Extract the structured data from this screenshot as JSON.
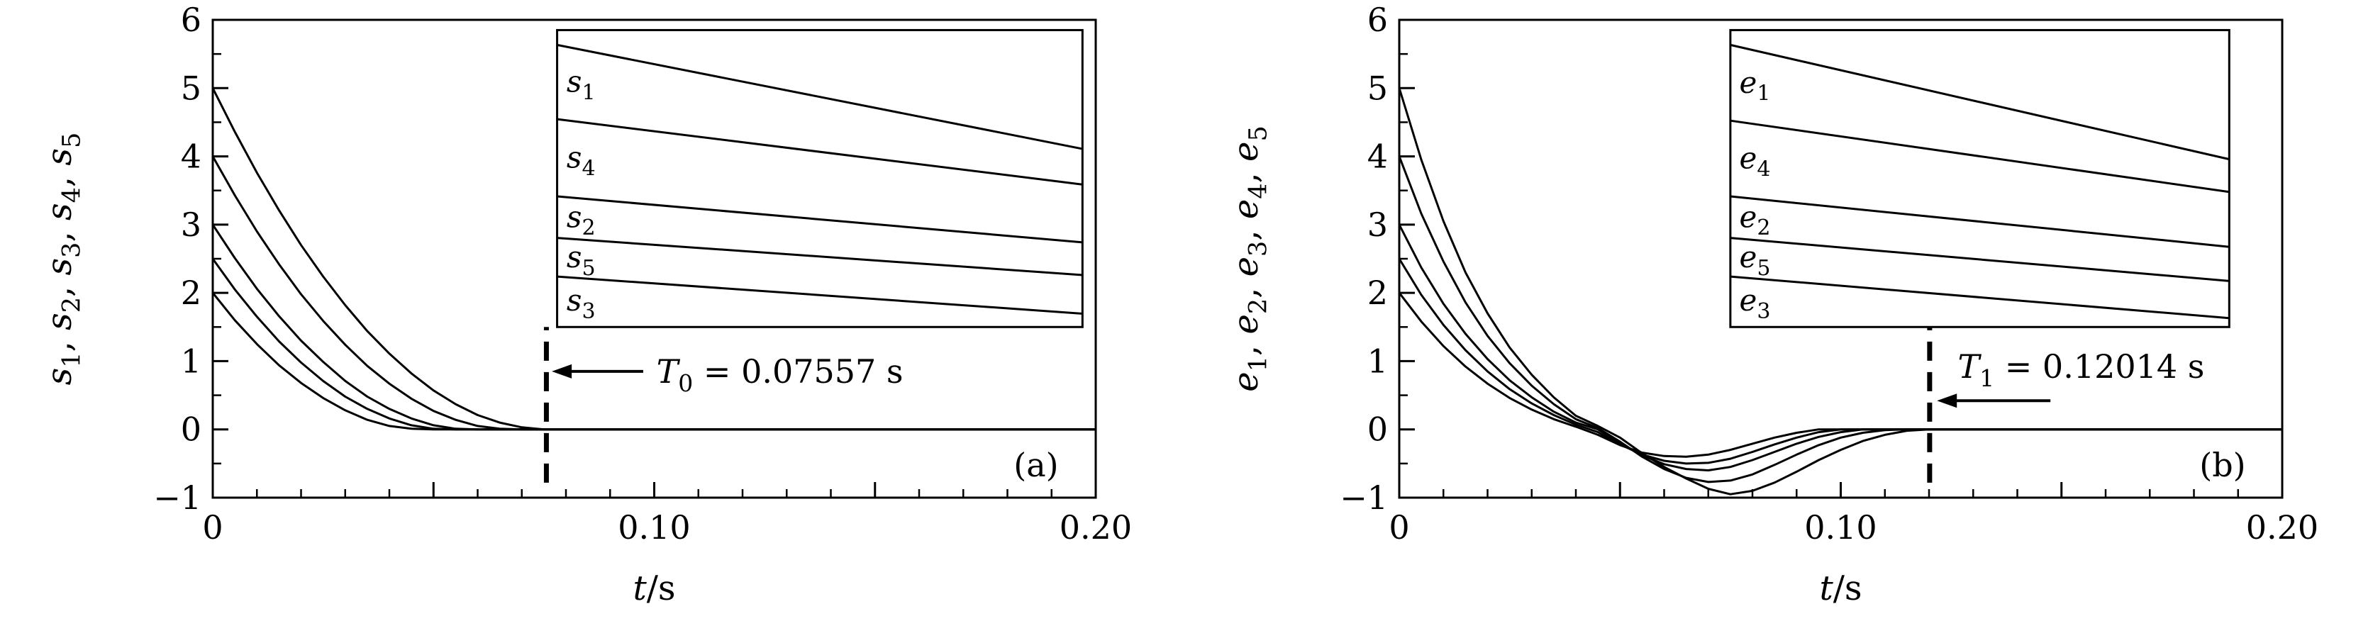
{
  "colors": {
    "ink": "#000000",
    "bg": "#ffffff"
  },
  "chart_data": [
    {
      "id": "a",
      "type": "line",
      "panel_label": {
        "text": "(a)",
        "x": 0.1865,
        "y": -0.52
      },
      "xlabel_parts": [
        {
          "t": "t",
          "i": 1
        },
        {
          "t": "/s"
        }
      ],
      "ylabel_parts": [
        {
          "t": "s",
          "i": 1
        },
        {
          "t": "1",
          "sub": 1
        },
        {
          "t": ", "
        },
        {
          "t": "s",
          "i": 1
        },
        {
          "t": "2",
          "sub": 1
        },
        {
          "t": ", "
        },
        {
          "t": "s",
          "i": 1
        },
        {
          "t": "3",
          "sub": 1
        },
        {
          "t": ", "
        },
        {
          "t": "s",
          "i": 1
        },
        {
          "t": "4",
          "sub": 1
        },
        {
          "t": ", "
        },
        {
          "t": "s",
          "i": 1
        },
        {
          "t": "5",
          "sub": 1
        }
      ],
      "xlim": [
        0,
        0.2
      ],
      "ylim": [
        -1,
        6
      ],
      "xticks": [
        {
          "v": 0,
          "label": "0"
        },
        {
          "v": 0.05,
          "label": ""
        },
        {
          "v": 0.1,
          "label": "0.10"
        },
        {
          "v": 0.15,
          "label": ""
        },
        {
          "v": 0.2,
          "label": "0.20"
        }
      ],
      "x_minor_step": 0.01,
      "yticks": [
        {
          "v": -1,
          "label": "−1"
        },
        {
          "v": 0,
          "label": "0"
        },
        {
          "v": 1,
          "label": "1"
        },
        {
          "v": 2,
          "label": "2"
        },
        {
          "v": 3,
          "label": "3"
        },
        {
          "v": 4,
          "label": "4"
        },
        {
          "v": 5,
          "label": "5"
        },
        {
          "v": 6,
          "label": "6"
        }
      ],
      "y_minor_step": 0.5,
      "x": [
        0,
        0.005,
        0.01,
        0.015,
        0.02,
        0.025,
        0.03,
        0.035,
        0.04,
        0.045,
        0.05,
        0.055,
        0.06,
        0.065,
        0.07,
        0.075,
        0.08,
        0.085,
        0.09,
        0.095,
        0.1,
        0.105,
        0.11,
        0.115,
        0.12,
        0.125,
        0.13,
        0.14,
        0.16,
        0.18,
        0.2
      ],
      "series": [
        {
          "name": "s1",
          "label": [
            {
              "t": "s",
              "i": 1
            },
            {
              "t": "1",
              "sub": 1
            }
          ],
          "values": [
            5,
            4.36,
            3.76,
            3.21,
            2.7,
            2.24,
            1.82,
            1.44,
            1.11,
            0.82,
            0.57,
            0.37,
            0.21,
            0.1,
            0.03,
            0,
            0,
            0,
            0,
            0,
            0,
            0,
            0,
            0,
            0,
            0,
            0,
            0,
            0,
            0,
            0
          ]
        },
        {
          "name": "s4",
          "label": [
            {
              "t": "s",
              "i": 1
            },
            {
              "t": "4",
              "sub": 1
            }
          ],
          "values": [
            4,
            3.43,
            2.9,
            2.42,
            1.98,
            1.59,
            1.24,
            0.93,
            0.67,
            0.45,
            0.27,
            0.14,
            0.05,
            0.01,
            0,
            0,
            0,
            0,
            0,
            0,
            0,
            0,
            0,
            0,
            0,
            0,
            0,
            0,
            0,
            0,
            0
          ]
        },
        {
          "name": "s2",
          "label": [
            {
              "t": "s",
              "i": 1
            },
            {
              "t": "2",
              "sub": 1
            }
          ],
          "values": [
            3,
            2.51,
            2.06,
            1.66,
            1.3,
            0.99,
            0.71,
            0.48,
            0.3,
            0.16,
            0.06,
            0.01,
            0,
            0,
            0,
            0,
            0,
            0,
            0,
            0,
            0,
            0,
            0,
            0,
            0,
            0,
            0,
            0,
            0,
            0,
            0
          ]
        },
        {
          "name": "s5",
          "label": [
            {
              "t": "s",
              "i": 1
            },
            {
              "t": "5",
              "sub": 1
            }
          ],
          "values": [
            2.5,
            2.05,
            1.65,
            1.29,
            0.98,
            0.71,
            0.48,
            0.3,
            0.16,
            0.06,
            0.01,
            0,
            0,
            0,
            0,
            0,
            0,
            0,
            0,
            0,
            0,
            0,
            0,
            0,
            0,
            0,
            0,
            0,
            0,
            0,
            0
          ]
        },
        {
          "name": "s3",
          "label": [
            {
              "t": "s",
              "i": 1
            },
            {
              "t": "3",
              "sub": 1
            }
          ],
          "values": [
            2,
            1.6,
            1.25,
            0.94,
            0.68,
            0.46,
            0.28,
            0.14,
            0.05,
            0.01,
            0,
            0,
            0,
            0,
            0,
            0,
            0,
            0,
            0,
            0,
            0,
            0,
            0,
            0,
            0,
            0,
            0,
            0,
            0,
            0,
            0
          ]
        }
      ],
      "threshold": {
        "x": 0.07557,
        "line_y0": -0.78,
        "line_y1": 1.5,
        "arrow": {
          "y": 0.85,
          "tip_x": 0.0768,
          "tail_x": 0.0975
        },
        "label": [
          {
            "t": "T",
            "i": 1
          },
          {
            "t": "0",
            "sub": 1
          },
          {
            "t": " = 0.07557 s"
          }
        ],
        "label_x": 0.1005,
        "label_y": 0.85
      },
      "inset": {
        "box": {
          "x0": 0.078,
          "x1": 0.197,
          "y0": 1.5,
          "y1": 5.85
        },
        "lines": [
          {
            "name": "s1",
            "label": [
              {
                "t": "s",
                "i": 1
              },
              {
                "t": "1",
                "sub": 1
              }
            ],
            "v0": 0.95,
            "v1": 0.6
          },
          {
            "name": "s4",
            "label": [
              {
                "t": "s",
                "i": 1
              },
              {
                "t": "4",
                "sub": 1
              }
            ],
            "v0": 0.7,
            "v1": 0.48
          },
          {
            "name": "s2",
            "label": [
              {
                "t": "s",
                "i": 1
              },
              {
                "t": "2",
                "sub": 1
              }
            ],
            "v0": 0.44,
            "v1": 0.285
          },
          {
            "name": "s5",
            "label": [
              {
                "t": "s",
                "i": 1
              },
              {
                "t": "5",
                "sub": 1
              }
            ],
            "v0": 0.3,
            "v1": 0.175
          },
          {
            "name": "s3",
            "label": [
              {
                "t": "s",
                "i": 1
              },
              {
                "t": "3",
                "sub": 1
              }
            ],
            "v0": 0.17,
            "v1": 0.045
          }
        ]
      }
    },
    {
      "id": "b",
      "type": "line",
      "panel_label": {
        "text": "(b)",
        "x": 0.1865,
        "y": -0.52
      },
      "xlabel_parts": [
        {
          "t": "t",
          "i": 1
        },
        {
          "t": "/s"
        }
      ],
      "ylabel_parts": [
        {
          "t": "e",
          "i": 1
        },
        {
          "t": "1",
          "sub": 1
        },
        {
          "t": ", "
        },
        {
          "t": "e",
          "i": 1
        },
        {
          "t": "2",
          "sub": 1
        },
        {
          "t": ", "
        },
        {
          "t": "e",
          "i": 1
        },
        {
          "t": "3",
          "sub": 1
        },
        {
          "t": ", "
        },
        {
          "t": "e",
          "i": 1
        },
        {
          "t": "4",
          "sub": 1
        },
        {
          "t": ", "
        },
        {
          "t": "e",
          "i": 1
        },
        {
          "t": "5",
          "sub": 1
        }
      ],
      "xlim": [
        0,
        0.2
      ],
      "ylim": [
        -1,
        6
      ],
      "xticks": [
        {
          "v": 0,
          "label": "0"
        },
        {
          "v": 0.05,
          "label": ""
        },
        {
          "v": 0.1,
          "label": "0.10"
        },
        {
          "v": 0.15,
          "label": ""
        },
        {
          "v": 0.2,
          "label": "0.20"
        }
      ],
      "x_minor_step": 0.01,
      "yticks": [
        {
          "v": -1,
          "label": "−1"
        },
        {
          "v": 0,
          "label": "0"
        },
        {
          "v": 1,
          "label": "1"
        },
        {
          "v": 2,
          "label": "2"
        },
        {
          "v": 3,
          "label": "3"
        },
        {
          "v": 4,
          "label": "4"
        },
        {
          "v": 5,
          "label": "5"
        },
        {
          "v": 6,
          "label": "6"
        }
      ],
      "y_minor_step": 0.5,
      "x": [
        0,
        0.005,
        0.01,
        0.015,
        0.02,
        0.025,
        0.03,
        0.035,
        0.04,
        0.045,
        0.05,
        0.055,
        0.06,
        0.065,
        0.07,
        0.075,
        0.08,
        0.085,
        0.09,
        0.095,
        0.1,
        0.105,
        0.11,
        0.115,
        0.12,
        0.125,
        0.13,
        0.14,
        0.16,
        0.18,
        0.2
      ],
      "series": [
        {
          "name": "e1",
          "label": [
            {
              "t": "e",
              "i": 1
            },
            {
              "t": "1",
              "sub": 1
            }
          ],
          "values": [
            5,
            3.95,
            3.05,
            2.3,
            1.7,
            1.2,
            0.8,
            0.47,
            0.2,
            0.05,
            -0.12,
            -0.35,
            -0.55,
            -0.72,
            -0.87,
            -0.95,
            -0.9,
            -0.78,
            -0.62,
            -0.45,
            -0.3,
            -0.17,
            -0.08,
            -0.02,
            0,
            0,
            0,
            0,
            0,
            0,
            0
          ]
        },
        {
          "name": "e4",
          "label": [
            {
              "t": "e",
              "i": 1
            },
            {
              "t": "4",
              "sub": 1
            }
          ],
          "values": [
            4,
            3.16,
            2.46,
            1.86,
            1.37,
            0.97,
            0.64,
            0.37,
            0.15,
            0.02,
            -0.18,
            -0.4,
            -0.58,
            -0.71,
            -0.77,
            -0.75,
            -0.66,
            -0.52,
            -0.37,
            -0.23,
            -0.12,
            -0.05,
            -0.01,
            0,
            0,
            0,
            0,
            0,
            0,
            0,
            0
          ]
        },
        {
          "name": "e2",
          "label": [
            {
              "t": "e",
              "i": 1
            },
            {
              "t": "2",
              "sub": 1
            }
          ],
          "values": [
            3,
            2.37,
            1.84,
            1.4,
            1.03,
            0.72,
            0.47,
            0.26,
            0.1,
            0,
            -0.2,
            -0.38,
            -0.51,
            -0.58,
            -0.6,
            -0.55,
            -0.45,
            -0.33,
            -0.21,
            -0.11,
            -0.04,
            0,
            0,
            0,
            0,
            0,
            0,
            0,
            0,
            0,
            0
          ]
        },
        {
          "name": "e5",
          "label": [
            {
              "t": "e",
              "i": 1
            },
            {
              "t": "5",
              "sub": 1
            }
          ],
          "values": [
            2.5,
            1.97,
            1.53,
            1.16,
            0.85,
            0.59,
            0.38,
            0.21,
            0.07,
            -0.04,
            -0.22,
            -0.37,
            -0.46,
            -0.5,
            -0.49,
            -0.43,
            -0.33,
            -0.22,
            -0.12,
            -0.04,
            0,
            0,
            0,
            0,
            0,
            0,
            0,
            0,
            0,
            0,
            0
          ]
        },
        {
          "name": "e3",
          "label": [
            {
              "t": "e",
              "i": 1
            },
            {
              "t": "3",
              "sub": 1
            }
          ],
          "values": [
            2,
            1.58,
            1.22,
            0.92,
            0.67,
            0.46,
            0.29,
            0.15,
            0.04,
            -0.08,
            -0.23,
            -0.34,
            -0.39,
            -0.4,
            -0.37,
            -0.3,
            -0.21,
            -0.12,
            -0.05,
            0,
            0,
            0,
            0,
            0,
            0,
            0,
            0,
            0,
            0,
            0,
            0
          ]
        }
      ],
      "threshold": {
        "x": 0.12014,
        "line_y0": -0.78,
        "line_y1": 1.5,
        "arrow": {
          "y": 0.42,
          "tip_x": 0.1218,
          "tail_x": 0.1475
        },
        "label": [
          {
            "t": "T",
            "i": 1
          },
          {
            "t": "1",
            "sub": 1
          },
          {
            "t": " = 0.12014 s"
          }
        ],
        "label_x": 0.1265,
        "label_y": 0.92
      },
      "inset": {
        "box": {
          "x0": 0.075,
          "x1": 0.188,
          "y0": 1.5,
          "y1": 5.85
        },
        "lines": [
          {
            "name": "e1",
            "label": [
              {
                "t": "e",
                "i": 1
              },
              {
                "t": "1",
                "sub": 1
              }
            ],
            "v0": 0.95,
            "v1": 0.565
          },
          {
            "name": "e4",
            "label": [
              {
                "t": "e",
                "i": 1
              },
              {
                "t": "4",
                "sub": 1
              }
            ],
            "v0": 0.695,
            "v1": 0.455
          },
          {
            "name": "e2",
            "label": [
              {
                "t": "e",
                "i": 1
              },
              {
                "t": "2",
                "sub": 1
              }
            ],
            "v0": 0.44,
            "v1": 0.27
          },
          {
            "name": "e5",
            "label": [
              {
                "t": "e",
                "i": 1
              },
              {
                "t": "5",
                "sub": 1
              }
            ],
            "v0": 0.3,
            "v1": 0.155
          },
          {
            "name": "e3",
            "label": [
              {
                "t": "e",
                "i": 1
              },
              {
                "t": "3",
                "sub": 1
              }
            ],
            "v0": 0.17,
            "v1": 0.03
          }
        ]
      }
    }
  ]
}
